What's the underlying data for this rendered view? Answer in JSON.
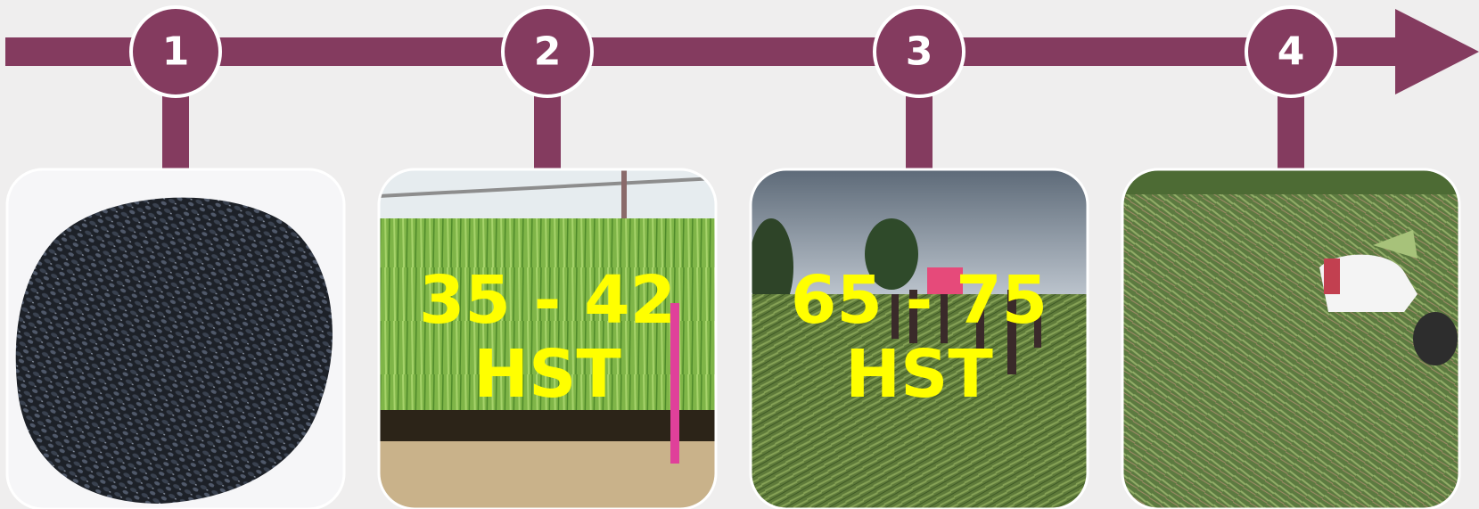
{
  "steps": [
    {
      "number": "1"
    },
    {
      "number": "2",
      "label": [
        "35 - 42",
        "HST"
      ]
    },
    {
      "number": "3",
      "label": [
        "65 - 75",
        "HST"
      ]
    },
    {
      "number": "4"
    }
  ]
}
